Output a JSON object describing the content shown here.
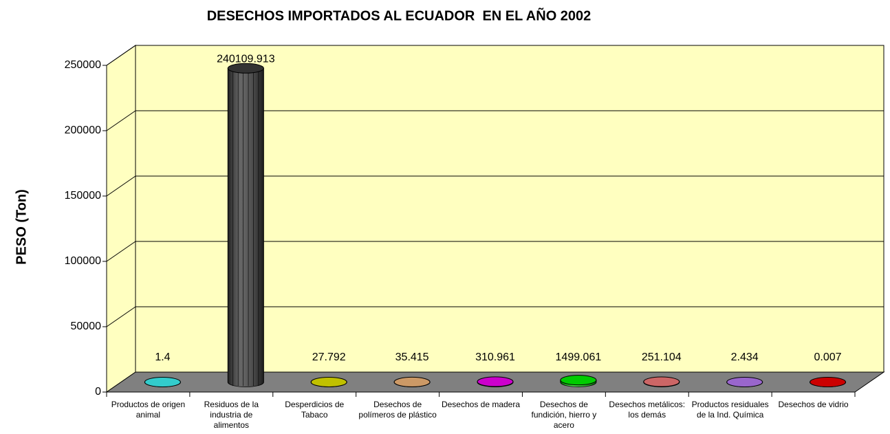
{
  "chart_data": {
    "type": "bar3d",
    "title": "DESECHOS IMPORTADOS AL ECUADOR  EN EL AÑO 2002",
    "y_label": "PESO (Ton)",
    "categories": [
      "Productos de origen animal",
      "Residuos de la industria de alimentos",
      "Desperdicios de Tabaco",
      "Desechos de polímeros de plástico",
      "Desechos de madera",
      "Desechos de fundición, hierro y acero",
      "Desechos metálicos: los demás",
      "Productos residuales de la Ind. Química",
      "Desechos de vidrio"
    ],
    "values": [
      1.4,
      240109.913,
      27.792,
      35.415,
      310.961,
      1499.061,
      251.104,
      2.434,
      0.007
    ],
    "colors": [
      "#33cccc",
      "#333333",
      "#c0c000",
      "#cc9966",
      "#cc00cc",
      "#00cc00",
      "#cc6666",
      "#9966cc",
      "#cc0000"
    ],
    "ylim": [
      0,
      250000
    ],
    "yticks": [
      0,
      50000,
      100000,
      150000,
      200000,
      250000
    ],
    "grid": true
  }
}
